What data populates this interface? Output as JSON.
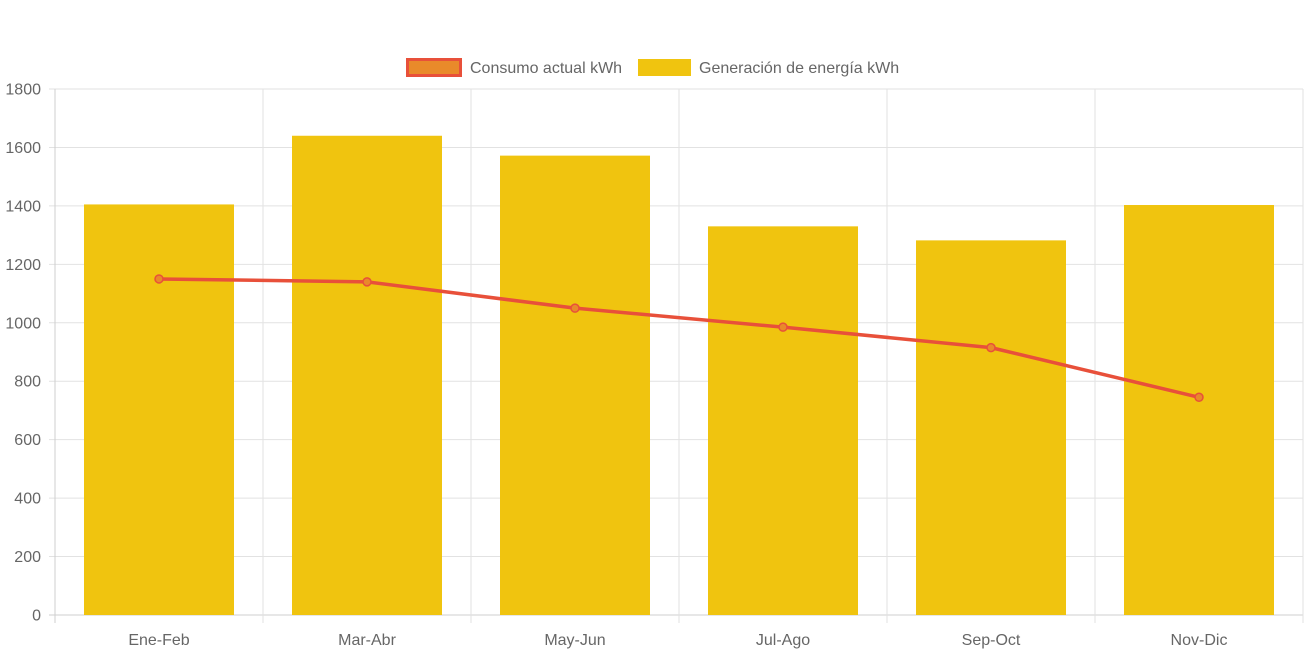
{
  "chart_data": {
    "type": "bar",
    "categories": [
      "Ene-Feb",
      "Mar-Abr",
      "May-Jun",
      "Jul-Ago",
      "Sep-Oct",
      "Nov-Dic"
    ],
    "series": [
      {
        "name": "Consumo actual kWh",
        "type": "line",
        "color": "#e8503a",
        "marker_fill": "#e98a2a",
        "values": [
          1150,
          1140,
          1050,
          985,
          915,
          745
        ]
      },
      {
        "name": "Generación de energía kWh",
        "type": "bar",
        "color": "#f0c40f",
        "values": [
          1405,
          1640,
          1572,
          1330,
          1282,
          1403
        ]
      }
    ],
    "ylim": [
      0,
      1800
    ],
    "yticks": [
      0,
      200,
      400,
      600,
      800,
      1000,
      1200,
      1400,
      1600,
      1800
    ],
    "grid": true,
    "legend_position": "top",
    "title": "",
    "xlabel": "",
    "ylabel": ""
  }
}
